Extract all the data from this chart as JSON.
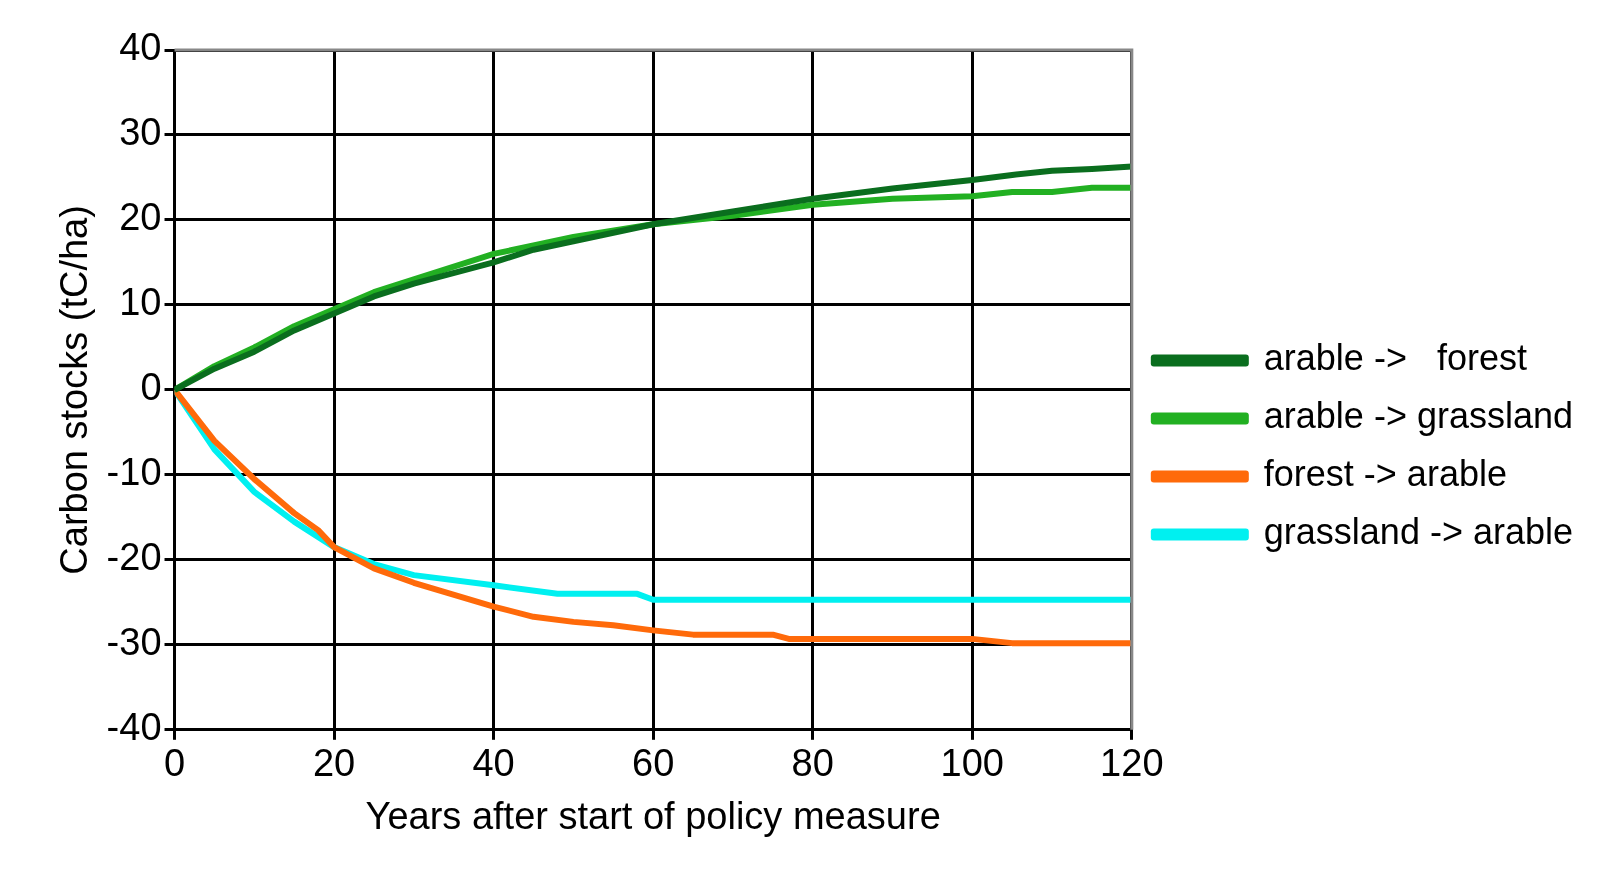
{
  "chart_data": {
    "type": "line",
    "xlabel": "Years after start of policy measure",
    "ylabel": "Carbon stocks (tC/ha)",
    "xlim": [
      0,
      120
    ],
    "xticks": [
      0,
      20,
      40,
      60,
      80,
      100,
      120
    ],
    "ylim": [
      -40,
      40
    ],
    "yticks": [
      -40,
      -30,
      -20,
      -10,
      0,
      10,
      20,
      30,
      40
    ],
    "grid": true,
    "legend": "right",
    "marker": "none",
    "line_style": "solid",
    "series": [
      {
        "name": "arable ->   forest",
        "color": "#0a6e1e",
        "x": [
          0,
          5,
          10,
          15,
          20,
          25,
          30,
          40,
          45,
          50,
          60,
          70,
          80,
          90,
          100,
          105,
          110,
          115,
          120
        ],
        "values": [
          0,
          2.5,
          4.5,
          7,
          9,
          11,
          12.5,
          15,
          16.5,
          17.5,
          19.5,
          21,
          22.5,
          23.7,
          24.7,
          25.3,
          25.8,
          26,
          26.3
        ]
      },
      {
        "name": "arable -> grassland",
        "color": "#22b022",
        "x": [
          0,
          5,
          10,
          15,
          20,
          25,
          30,
          40,
          45,
          50,
          60,
          70,
          80,
          90,
          100,
          105,
          110,
          115,
          120
        ],
        "values": [
          0,
          2.8,
          5,
          7.5,
          9.5,
          11.5,
          13,
          16,
          17,
          18,
          19.5,
          20.5,
          21.8,
          22.5,
          22.8,
          23.3,
          23.3,
          23.8,
          23.8
        ]
      },
      {
        "name": "forest -> arable",
        "color": "#ff6a0a",
        "x": [
          0,
          5,
          10,
          15,
          18,
          20,
          25,
          30,
          40,
          45,
          50,
          55,
          60,
          65,
          75,
          77,
          100,
          105,
          120
        ],
        "values": [
          0,
          -6,
          -10.5,
          -14.5,
          -16.5,
          -18.5,
          -21,
          -22.7,
          -25.5,
          -26.7,
          -27.3,
          -27.7,
          -28.3,
          -28.8,
          -28.8,
          -29.3,
          -29.3,
          -29.8,
          -29.8
        ]
      },
      {
        "name": "grassland -> arable",
        "color": "#00f0f0",
        "x": [
          0,
          5,
          10,
          15,
          20,
          25,
          30,
          40,
          48,
          58,
          60,
          120
        ],
        "values": [
          0,
          -7,
          -12,
          -15.5,
          -18.5,
          -20.5,
          -21.8,
          -23,
          -24,
          -24,
          -24.7,
          -24.7
        ]
      }
    ]
  }
}
